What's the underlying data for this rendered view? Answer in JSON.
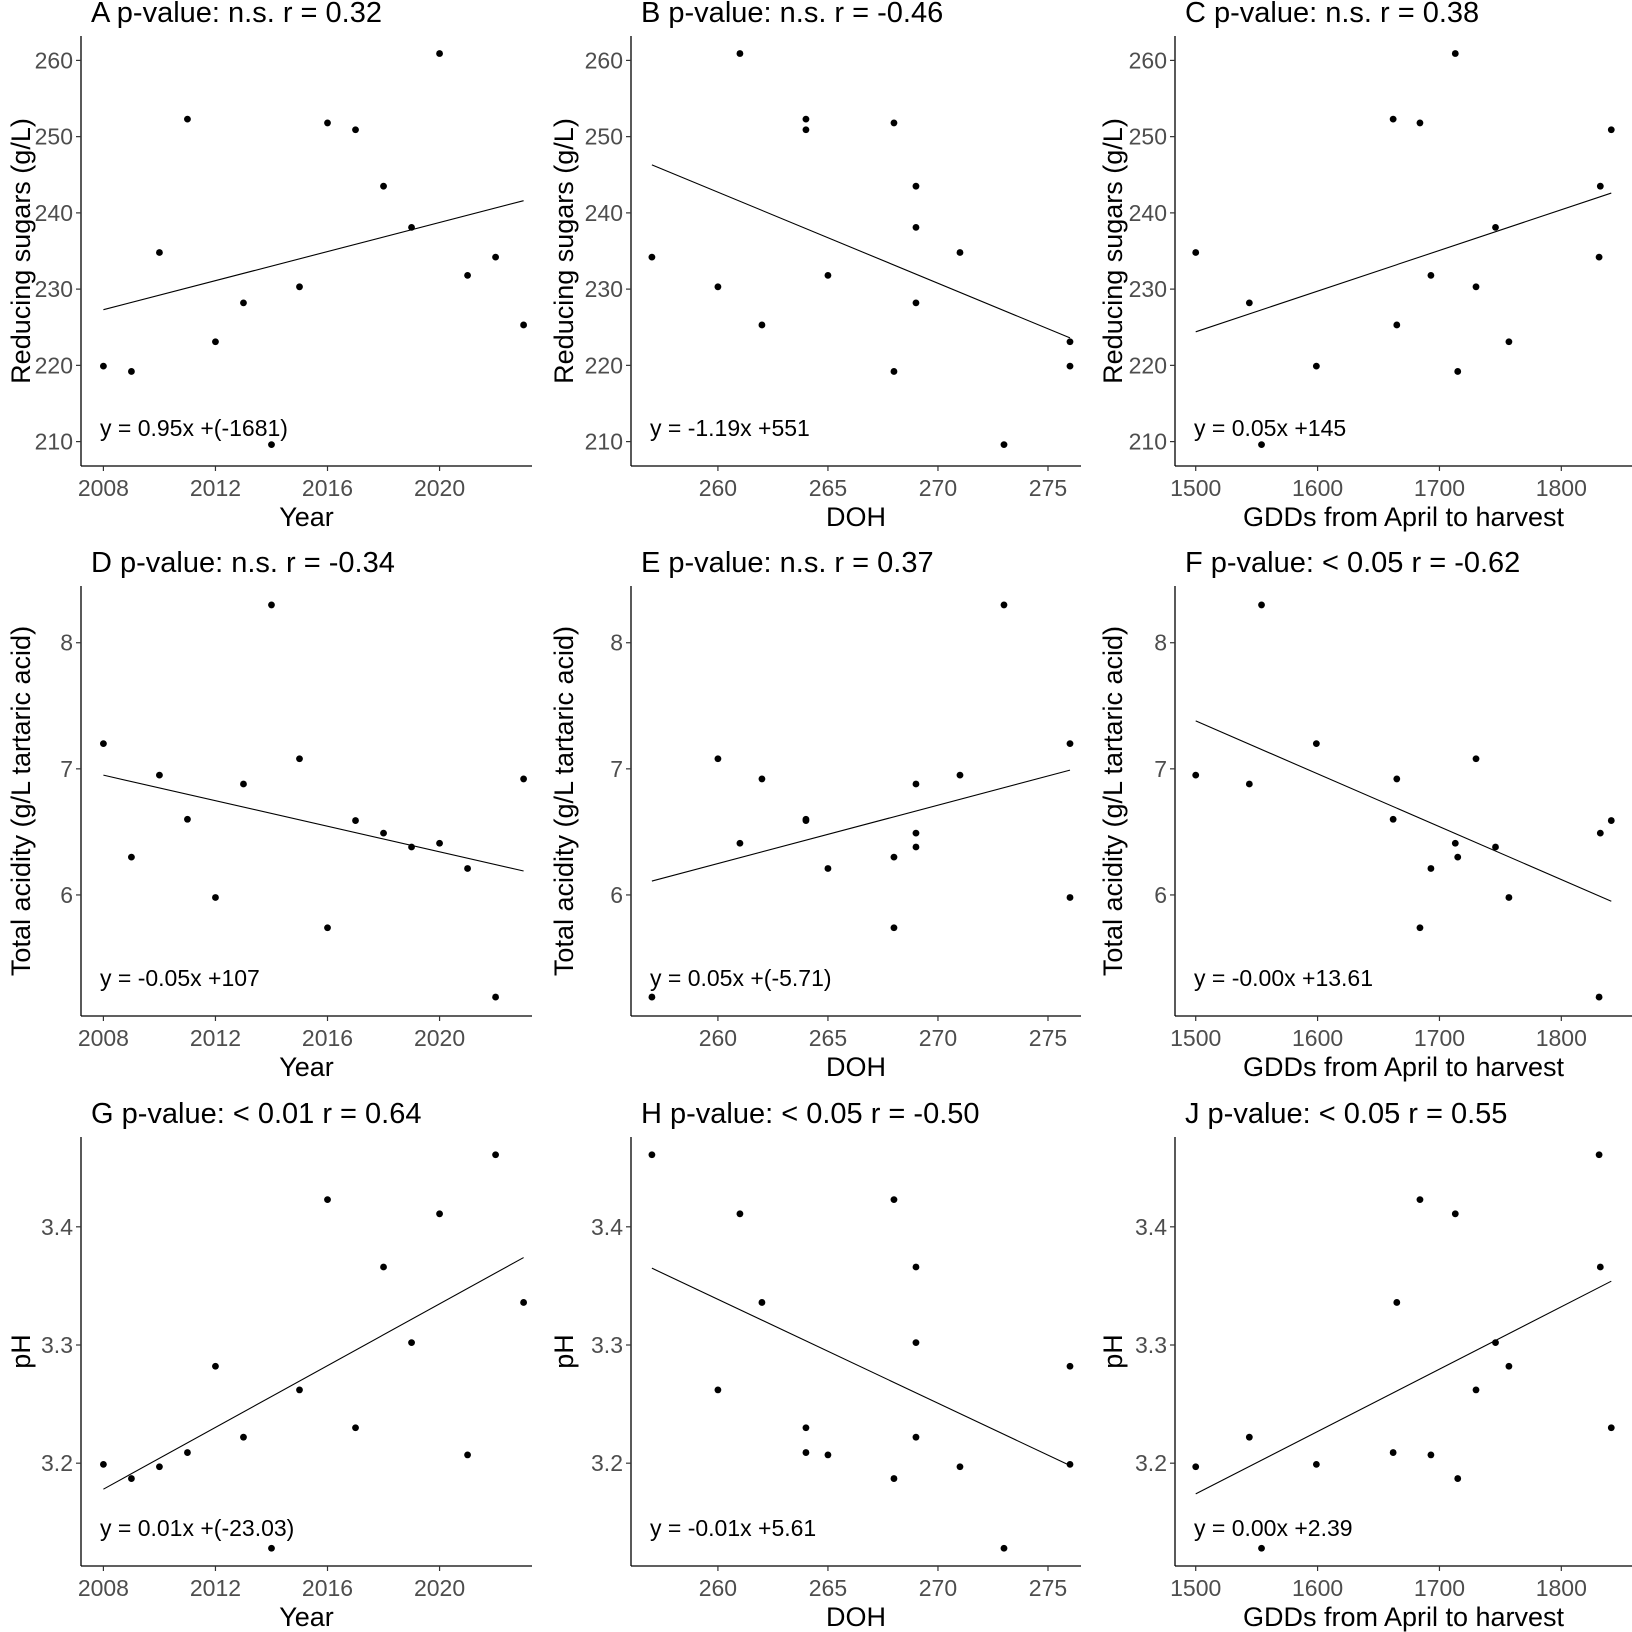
{
  "chart_data": {
    "type": "scatter",
    "layout": "3x3 grid",
    "years": [
      2008,
      2009,
      2010,
      2011,
      2012,
      2013,
      2014,
      2015,
      2016,
      2017,
      2018,
      2019,
      2020,
      2021,
      2022,
      2023
    ],
    "variables": {
      "Year": [
        2008,
        2009,
        2010,
        2011,
        2012,
        2013,
        2014,
        2015,
        2016,
        2017,
        2018,
        2019,
        2020,
        2021,
        2022,
        2023
      ],
      "DOH": [
        276,
        268,
        271,
        264,
        276,
        269,
        273,
        260,
        268,
        264,
        269,
        269,
        261,
        265,
        257,
        262
      ],
      "GDD": [
        1599,
        1715,
        1500,
        1662,
        1757,
        1544,
        1554,
        1730,
        1684,
        1841,
        1832,
        1746,
        1713,
        1693,
        1831,
        1665
      ],
      "RS": [
        219.9,
        219.2,
        234.8,
        252.3,
        223.1,
        228.2,
        209.6,
        230.3,
        251.8,
        250.9,
        243.5,
        238.1,
        260.9,
        231.8,
        234.2,
        225.3
      ],
      "TA": [
        7.2,
        6.3,
        6.95,
        6.6,
        5.98,
        6.88,
        8.3,
        7.08,
        5.74,
        6.59,
        6.49,
        6.38,
        6.41,
        6.21,
        5.19,
        6.92
      ],
      "pH": [
        3.199,
        3.187,
        3.197,
        3.209,
        3.282,
        3.222,
        3.128,
        3.262,
        3.423,
        3.23,
        3.366,
        3.302,
        3.411,
        3.207,
        3.461,
        3.336
      ]
    },
    "panels": [
      {
        "id": "A",
        "x": "Year",
        "y": "RS",
        "title": "A p-value: n.s.  r = 0.32",
        "xlabel": "Year",
        "ylabel": "Reducing sugars (g/L)",
        "equation": "y = 0.95x +(-1681)",
        "fit": {
          "x0": 2008,
          "y0": 227.3,
          "x1": 2023,
          "y1": 241.6
        },
        "xlim": [
          2007.2,
          2023.3
        ],
        "ylim": [
          206.8,
          263.2
        ],
        "xticks": [
          2008,
          2012,
          2016,
          2020
        ],
        "yticks": [
          210,
          220,
          230,
          240,
          250,
          260
        ]
      },
      {
        "id": "B",
        "x": "DOH",
        "y": "RS",
        "title": "B p-value: n.s.  r = -0.46",
        "xlabel": "DOH",
        "ylabel": "Reducing sugars (g/L)",
        "equation": "y = -1.19x +551",
        "fit": {
          "x0": 257,
          "y0": 246.3,
          "x1": 276,
          "y1": 223.6
        },
        "xlim": [
          256.05,
          276.5
        ],
        "ylim": [
          206.8,
          263.2
        ],
        "xticks": [
          260,
          265,
          270,
          275
        ],
        "yticks": [
          210,
          220,
          230,
          240,
          250,
          260
        ]
      },
      {
        "id": "C",
        "x": "GDD",
        "y": "RS",
        "title": "C p-value: n.s.  r = 0.38",
        "xlabel": "GDDs from April to harvest",
        "ylabel": "Reducing sugars (g/L)",
        "equation": "y = 0.05x +145",
        "fit": {
          "x0": 1500,
          "y0": 224.4,
          "x1": 1841,
          "y1": 242.6
        },
        "xlim": [
          1483,
          1858
        ],
        "ylim": [
          206.8,
          263.2
        ],
        "xticks": [
          1500,
          1600,
          1700,
          1800
        ],
        "yticks": [
          210,
          220,
          230,
          240,
          250,
          260
        ]
      },
      {
        "id": "D",
        "x": "Year",
        "y": "TA",
        "title": "D p-value: n.s.  r = -0.34",
        "xlabel": "Year",
        "ylabel": "Total acidity (g/L tartaric acid)",
        "equation": "y = -0.05x +107",
        "fit": {
          "x0": 2008,
          "y0": 6.95,
          "x1": 2023,
          "y1": 6.19
        },
        "xlim": [
          2007.2,
          2023.3
        ],
        "ylim": [
          5.04,
          8.45
        ],
        "xticks": [
          2008,
          2012,
          2016,
          2020
        ],
        "yticks": [
          6,
          7,
          8
        ]
      },
      {
        "id": "E",
        "x": "DOH",
        "y": "TA",
        "title": "E p-value: n.s.  r = 0.37",
        "xlabel": "DOH",
        "ylabel": "Total acidity (g/L tartaric acid)",
        "equation": "y = 0.05x +(-5.71)",
        "fit": {
          "x0": 257,
          "y0": 6.11,
          "x1": 276,
          "y1": 6.99
        },
        "xlim": [
          256.05,
          276.5
        ],
        "ylim": [
          5.04,
          8.45
        ],
        "xticks": [
          260,
          265,
          270,
          275
        ],
        "yticks": [
          6,
          7,
          8
        ]
      },
      {
        "id": "F",
        "x": "GDD",
        "y": "TA",
        "title": "F p-value: < 0.05  r = -0.62",
        "xlabel": "GDDs from April to harvest",
        "ylabel": "Total acidity (g/L tartaric acid)",
        "equation": "y = -0.00x +13.61",
        "fit": {
          "x0": 1500,
          "y0": 7.38,
          "x1": 1841,
          "y1": 5.95
        },
        "xlim": [
          1483,
          1858
        ],
        "ylim": [
          5.04,
          8.45
        ],
        "xticks": [
          1500,
          1600,
          1700,
          1800
        ],
        "yticks": [
          6,
          7,
          8
        ]
      },
      {
        "id": "G",
        "x": "Year",
        "y": "pH",
        "title": "G p-value: < 0.01  r = 0.64",
        "xlabel": "Year",
        "ylabel": "pH",
        "equation": "y = 0.01x +(-23.03)",
        "fit": {
          "x0": 2008,
          "y0": 3.178,
          "x1": 2023,
          "y1": 3.374
        },
        "xlim": [
          2007.2,
          2023.3
        ],
        "ylim": [
          3.113,
          3.476
        ],
        "xticks": [
          2008,
          2012,
          2016,
          2020
        ],
        "yticks": [
          3.2,
          3.3,
          3.4
        ]
      },
      {
        "id": "H",
        "x": "DOH",
        "y": "pH",
        "title": "H p-value: < 0.05  r = -0.50",
        "xlabel": "DOH",
        "ylabel": "pH",
        "equation": "y = -0.01x +5.61",
        "fit": {
          "x0": 257,
          "y0": 3.365,
          "x1": 276,
          "y1": 3.198
        },
        "xlim": [
          256.05,
          276.5
        ],
        "ylim": [
          3.113,
          3.476
        ],
        "xticks": [
          260,
          265,
          270,
          275
        ],
        "yticks": [
          3.2,
          3.3,
          3.4
        ]
      },
      {
        "id": "J",
        "x": "GDD",
        "y": "pH",
        "title": "J p-value: < 0.05  r = 0.55",
        "xlabel": "GDDs from April to harvest",
        "ylabel": "pH",
        "equation": "y = 0.00x +2.39",
        "fit": {
          "x0": 1500,
          "y0": 3.174,
          "x1": 1841,
          "y1": 3.354
        },
        "xlim": [
          1483,
          1858
        ],
        "ylim": [
          3.113,
          3.476
        ],
        "xticks": [
          1500,
          1600,
          1700,
          1800
        ],
        "yticks": [
          3.2,
          3.3,
          3.4
        ]
      }
    ],
    "grid": false,
    "legend": "none"
  }
}
